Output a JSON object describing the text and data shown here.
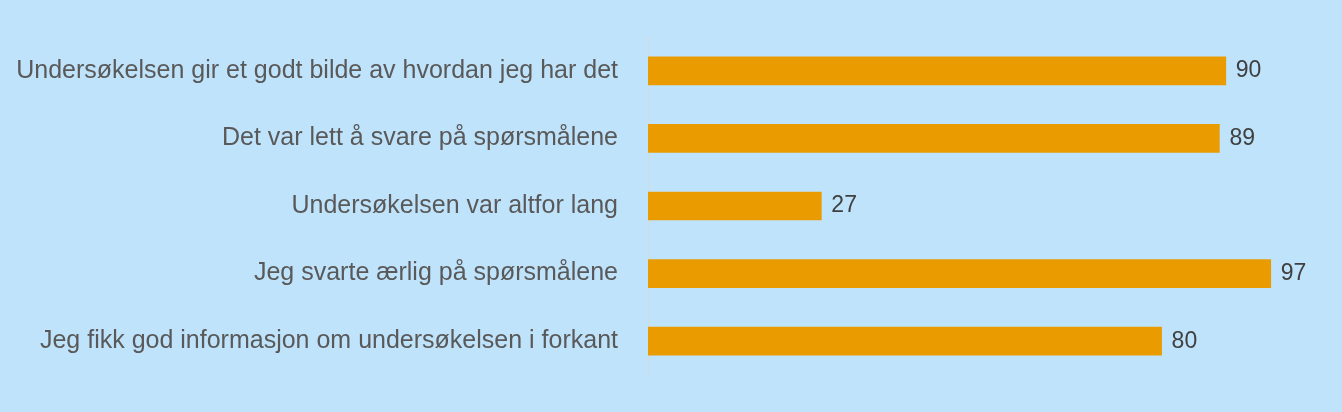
{
  "chart_data": {
    "type": "bar",
    "orientation": "horizontal",
    "categories": [
      "Undersøkelsen gir et godt bilde av hvordan jeg har det",
      "Det var lett å svare på spørsmålene",
      "Undersøkelsen var altfor lang",
      "Jeg svarte ærlig på spørsmålene",
      "Jeg fikk god informasjon om undersøkelsen i forkant"
    ],
    "values": [
      90,
      89,
      27,
      97,
      80
    ],
    "color": "#e99b00",
    "data_labels": true,
    "legend": false
  }
}
